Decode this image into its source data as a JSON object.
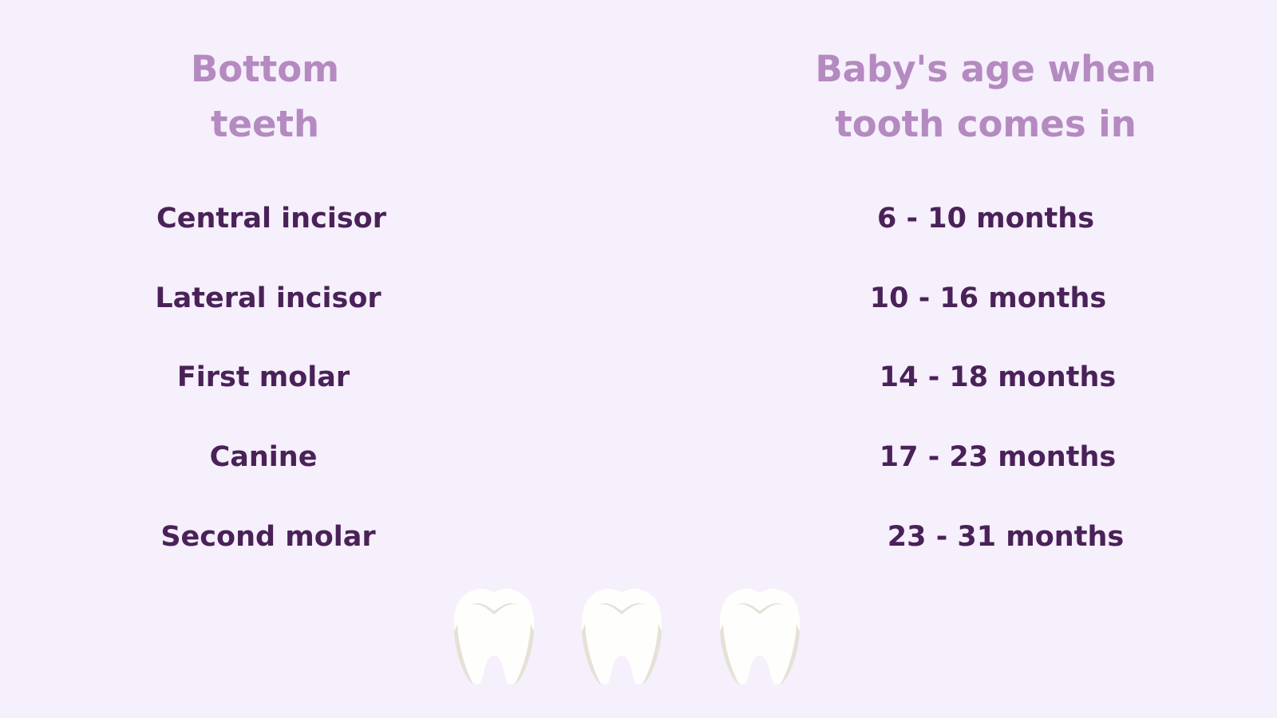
{
  "header": {
    "left_title": [
      "Bottom",
      "teeth"
    ],
    "right_title": [
      "Baby's age when",
      "tooth comes in"
    ]
  },
  "rows": [
    {
      "tooth": "Central incisor",
      "age": "6 - 10 months"
    },
    {
      "tooth": "Lateral incisor",
      "age": "10 - 16 months"
    },
    {
      "tooth": "First molar",
      "age": "14 - 18 months"
    },
    {
      "tooth": "Canine",
      "age": "17 - 23 months"
    },
    {
      "tooth": "Second molar",
      "age": "23 - 31 months"
    }
  ],
  "decorations": {
    "icons": [
      "tooth-icon",
      "tooth-icon",
      "tooth-icon"
    ]
  },
  "colors": {
    "background": "#f6effc",
    "heading": "#b48ac0",
    "text": "#4a2158"
  }
}
